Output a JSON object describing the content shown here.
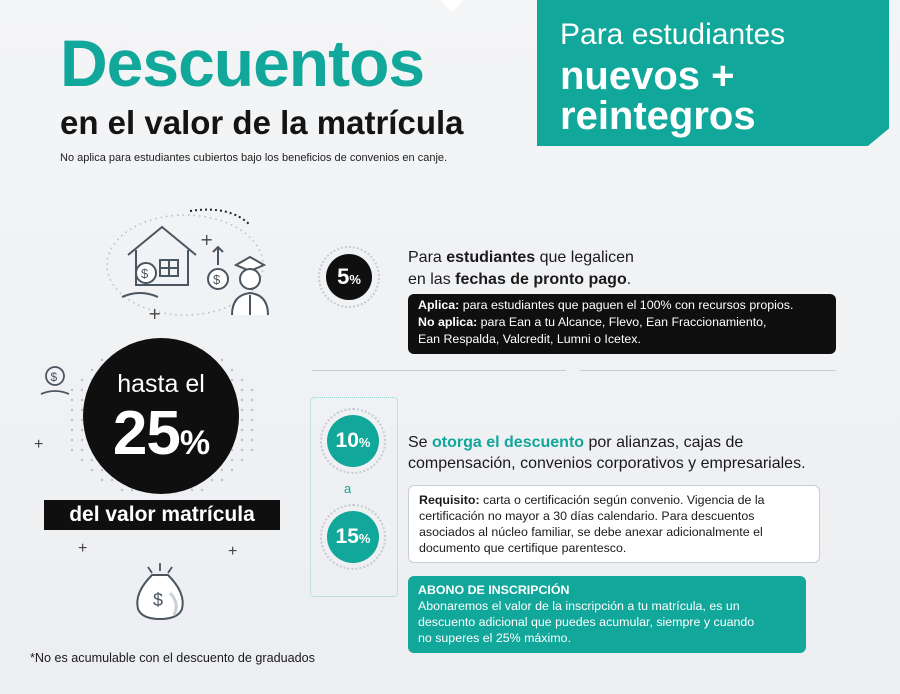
{
  "header": {
    "title": "Descuentos",
    "subtitle": "en el valor de la matrícula",
    "note": "No aplica para estudiantes cubiertos bajo los beneficios de convenios en canje."
  },
  "banner": {
    "line1": "Para estudiantes",
    "line2": "nuevos +",
    "line3": "reintegros"
  },
  "hero": {
    "prefix": "hasta el",
    "value": "25",
    "percent": "%",
    "bar_label": "del valor matrícula"
  },
  "section1": {
    "badge_value": "5",
    "badge_percent": "%",
    "text_part1": "Para ",
    "text_bold1": "estudiantes",
    "text_part2": " que legalicen",
    "text_part3": "en las ",
    "text_bold2": "fechas de pronto pago",
    "text_part4": ".",
    "box_label1": "Aplica:",
    "box_text1": " para estudiantes que paguen el 100% con recursos propios.",
    "box_label2": "No aplica:",
    "box_text2": " para Ean a tu Alcance, Flevo, Ean Fraccionamiento,",
    "box_text3": "Ean Respalda, Valcredit, Lumni o Icetex."
  },
  "section2": {
    "badge_from": "10",
    "badge_to": "15",
    "badge_percent": "%",
    "connector": "a",
    "text_part1": "Se ",
    "text_highlight": "otorga el descuento",
    "text_part2": " por alianzas, cajas de",
    "text_line2": "compensación, convenios corporativos y empresariales.",
    "req_label": "Requisito:",
    "req_text1": " carta o certificación según convenio. Vigencia de la",
    "req_text2": "certificación no mayor a 30 días calendario. Para descuentos",
    "req_text3": "asociados al núcleo familiar, se debe anexar adicionalmente el",
    "req_text4": "documento que certifique parentesco."
  },
  "section3": {
    "title": "ABONO DE INSCRIPCIÓN",
    "line1": "Abonaremos el valor de la inscripción a tu matrícula, es un",
    "line2": "descuento adicional que puedes acumular, siempre y cuando",
    "line3": "no superes el 25% máximo."
  },
  "footnote": "*No es acumulable con el descuento de graduados",
  "colors": {
    "teal": "#11a79a",
    "black": "#0f0f0f",
    "background": "#f0f1f3"
  },
  "icons": [
    "house-icon",
    "graduate-icon",
    "coin-hand-icon",
    "money-bag-icon",
    "plus-icon"
  ]
}
